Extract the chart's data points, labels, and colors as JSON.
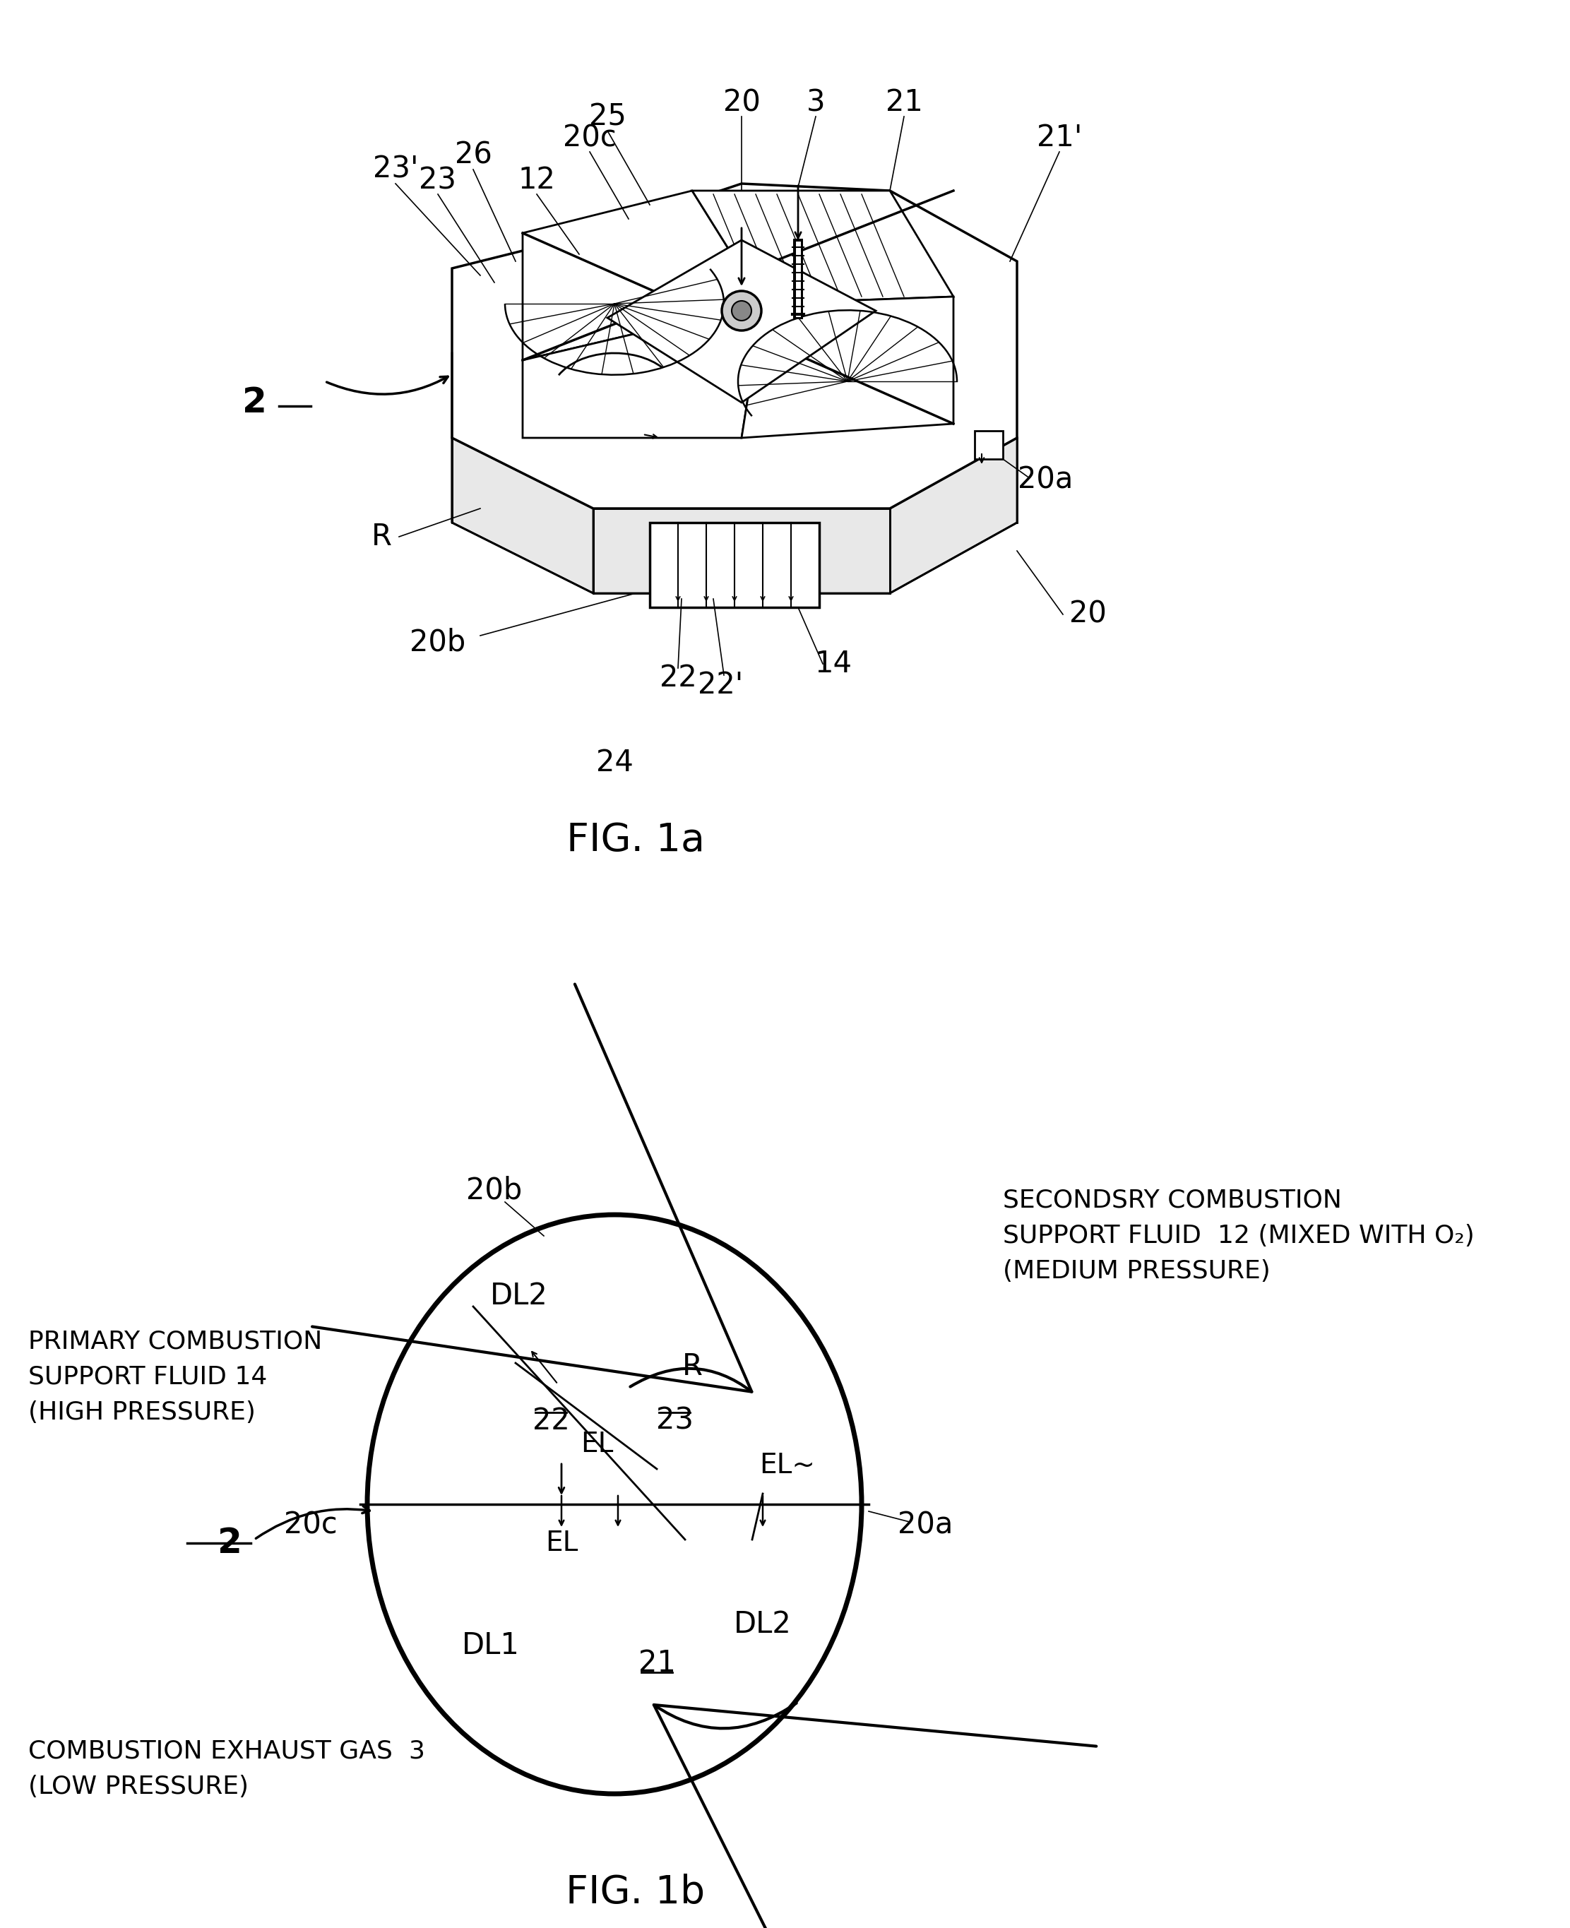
{
  "fig_width": 22.23,
  "fig_height": 27.3,
  "bg_color": "#ffffff",
  "line_color": "#000000",
  "fig1a_caption": "FIG. 1a",
  "fig1b_caption": "FIG. 1b",
  "secondary_text_line1": "SECONDSRY COMBUSTION",
  "secondary_text_line2": "SUPPORT FLUID  12 (MIXED WITH O₂)",
  "secondary_text_line3": "(MEDIUM PRESSURE)",
  "primary_text_line1": "PRIMARY COMBUSTION",
  "primary_text_line2": "SUPPORT FLUID 14",
  "primary_text_line3": "(HIGH PRESSURE)",
  "exhaust_text_line1": "COMBUSTION EXHAUST GAS  3",
  "exhaust_text_line2": "(LOW PRESSURE)"
}
